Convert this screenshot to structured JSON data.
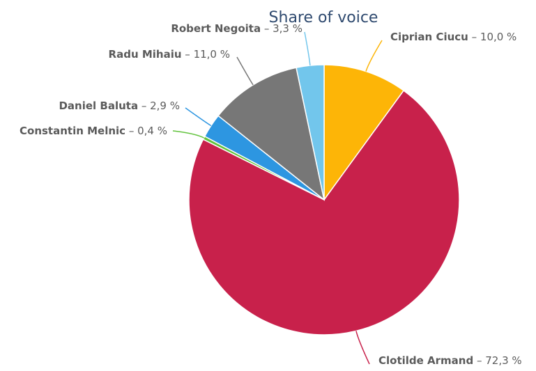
{
  "chart_data": {
    "type": "pie",
    "title": "Share of voice",
    "slices": [
      {
        "name": "Ciprian Ciucu",
        "value": 10.0,
        "label": "10,0 %",
        "color": "#fdb507"
      },
      {
        "name": "Clotilde Armand",
        "value": 72.3,
        "label": "72,3 %",
        "color": "#c8214b"
      },
      {
        "name": "Constantin Melnic",
        "value": 0.4,
        "label": "0,4 %",
        "color": "#62c33d"
      },
      {
        "name": "Daniel Baluta",
        "value": 2.9,
        "label": "2,9 %",
        "color": "#2d96e1"
      },
      {
        "name": "Radu Mihaiu",
        "value": 11.0,
        "label": "11,0 %",
        "color": "#777777"
      },
      {
        "name": "Robert Negoita",
        "value": 3.3,
        "label": "3,3 %",
        "color": "#72c6ec"
      }
    ],
    "label_separator": " – "
  }
}
